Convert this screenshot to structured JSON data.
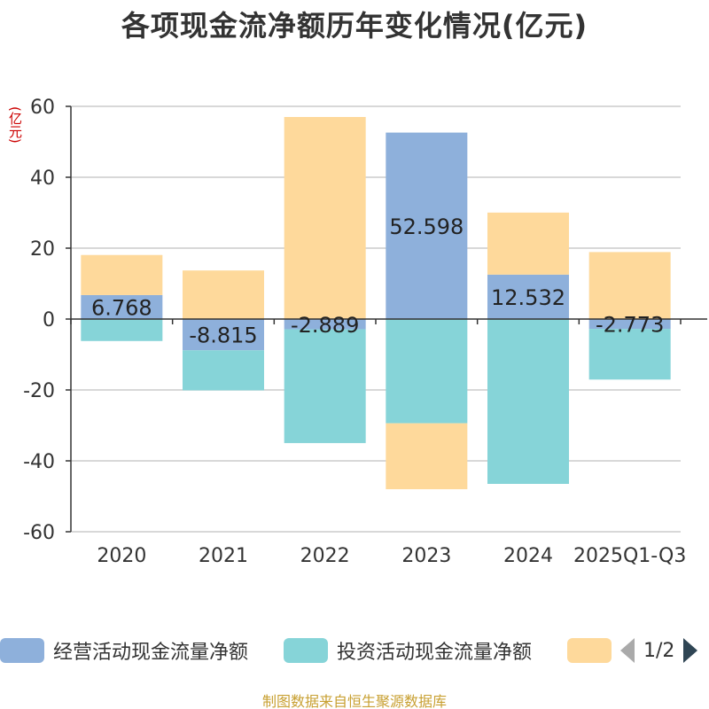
{
  "title": "各项现金流净额历年变化情况(亿元)",
  "y_unit": "(亿元)",
  "source": "制图数据来自恒生聚源数据库",
  "pager": {
    "text": "1/2"
  },
  "chart_data": {
    "type": "bar",
    "stacked": true,
    "title": "各项现金流净额历年变化情况(亿元)",
    "ylabel": "(亿元)",
    "ylim": [
      -60,
      60
    ],
    "yticks": [
      60,
      40,
      20,
      0,
      -20,
      -40,
      -60
    ],
    "categories": [
      "2020",
      "2021",
      "2022",
      "2023",
      "2024",
      "2025Q1-Q3"
    ],
    "series": [
      {
        "name": "经营活动现金流量净额",
        "color": "#8eb0db",
        "values": [
          6.768,
          -8.815,
          -2.889,
          52.598,
          12.532,
          -2.773
        ],
        "labels": [
          "6.768",
          "-8.815",
          "-2.889",
          "52.598",
          "12.532",
          "-2.773"
        ]
      },
      {
        "name": "投资活动现金流量净额",
        "color": "#86d4d8",
        "values": [
          -6.2,
          -11.3,
          -32.1,
          -29.4,
          -46.5,
          -14.3
        ]
      },
      {
        "name": "",
        "color": "#fed99b",
        "values": [
          11.3,
          13.7,
          57.0,
          -18.6,
          17.5,
          18.9
        ]
      }
    ]
  }
}
